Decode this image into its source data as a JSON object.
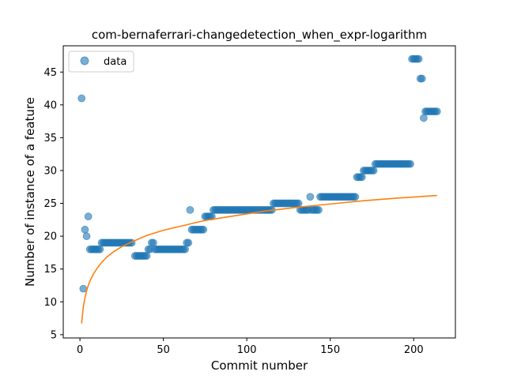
{
  "chart_data": {
    "type": "scatter",
    "title": "com-bernaferrari-changedetection_when_expr-logarithm",
    "xlabel": "Commit number",
    "ylabel": "Number of instance of a feature",
    "xlim": [
      -10,
      225
    ],
    "ylim": [
      4.5,
      49
    ],
    "xticks": [
      0,
      50,
      100,
      150,
      200
    ],
    "yticks": [
      5,
      10,
      15,
      20,
      25,
      30,
      35,
      40,
      45
    ],
    "legend": {
      "position": "upper-left",
      "entries": [
        "data"
      ]
    },
    "grid": false,
    "colors": {
      "data": "#1f77b4",
      "fit": "#ff7f0e"
    },
    "series": [
      {
        "name": "data",
        "kind": "scatter",
        "points": [
          [
            1,
            41
          ],
          [
            2,
            12
          ],
          [
            3,
            21
          ],
          [
            4,
            20
          ],
          [
            5,
            23
          ],
          [
            6,
            18
          ],
          [
            7,
            18
          ],
          [
            8,
            18
          ],
          [
            9,
            18
          ],
          [
            10,
            18
          ],
          [
            11,
            18
          ],
          [
            12,
            18
          ],
          [
            13,
            19
          ],
          [
            14,
            19
          ],
          [
            15,
            19
          ],
          [
            16,
            19
          ],
          [
            17,
            19
          ],
          [
            18,
            19
          ],
          [
            19,
            19
          ],
          [
            20,
            19
          ],
          [
            21,
            19
          ],
          [
            22,
            19
          ],
          [
            23,
            19
          ],
          [
            24,
            19
          ],
          [
            25,
            19
          ],
          [
            26,
            19
          ],
          [
            27,
            19
          ],
          [
            28,
            19
          ],
          [
            29,
            19
          ],
          [
            30,
            19
          ],
          [
            31,
            19
          ],
          [
            33,
            17
          ],
          [
            34,
            17
          ],
          [
            35,
            17
          ],
          [
            36,
            17
          ],
          [
            37,
            17
          ],
          [
            38,
            17
          ],
          [
            39,
            17
          ],
          [
            40,
            17
          ],
          [
            41,
            18
          ],
          [
            42,
            18
          ],
          [
            43,
            19
          ],
          [
            44,
            19
          ],
          [
            45,
            18
          ],
          [
            46,
            18
          ],
          [
            47,
            18
          ],
          [
            48,
            18
          ],
          [
            49,
            18
          ],
          [
            50,
            18
          ],
          [
            51,
            18
          ],
          [
            52,
            18
          ],
          [
            53,
            18
          ],
          [
            54,
            18
          ],
          [
            55,
            18
          ],
          [
            56,
            18
          ],
          [
            57,
            18
          ],
          [
            58,
            18
          ],
          [
            59,
            18
          ],
          [
            60,
            18
          ],
          [
            61,
            18
          ],
          [
            62,
            18
          ],
          [
            63,
            18
          ],
          [
            64,
            19
          ],
          [
            65,
            19
          ],
          [
            66,
            24
          ],
          [
            67,
            21
          ],
          [
            68,
            21
          ],
          [
            69,
            21
          ],
          [
            70,
            21
          ],
          [
            71,
            21
          ],
          [
            72,
            21
          ],
          [
            73,
            21
          ],
          [
            74,
            21
          ],
          [
            75,
            23
          ],
          [
            76,
            23
          ],
          [
            77,
            23
          ],
          [
            78,
            23
          ],
          [
            79,
            23
          ],
          [
            80,
            24
          ],
          [
            81,
            24
          ],
          [
            82,
            24
          ],
          [
            83,
            24
          ],
          [
            84,
            24
          ],
          [
            85,
            24
          ],
          [
            86,
            24
          ],
          [
            87,
            24
          ],
          [
            88,
            24
          ],
          [
            89,
            24
          ],
          [
            90,
            24
          ],
          [
            91,
            24
          ],
          [
            92,
            24
          ],
          [
            93,
            24
          ],
          [
            94,
            24
          ],
          [
            95,
            24
          ],
          [
            96,
            24
          ],
          [
            97,
            24
          ],
          [
            98,
            24
          ],
          [
            99,
            24
          ],
          [
            100,
            24
          ],
          [
            101,
            24
          ],
          [
            102,
            24
          ],
          [
            103,
            24
          ],
          [
            104,
            24
          ],
          [
            105,
            24
          ],
          [
            106,
            24
          ],
          [
            107,
            24
          ],
          [
            108,
            24
          ],
          [
            109,
            24
          ],
          [
            110,
            24
          ],
          [
            111,
            24
          ],
          [
            112,
            24
          ],
          [
            113,
            24
          ],
          [
            114,
            24
          ],
          [
            115,
            24
          ],
          [
            116,
            25
          ],
          [
            117,
            25
          ],
          [
            118,
            25
          ],
          [
            119,
            25
          ],
          [
            120,
            25
          ],
          [
            121,
            25
          ],
          [
            122,
            25
          ],
          [
            123,
            25
          ],
          [
            124,
            25
          ],
          [
            125,
            25
          ],
          [
            126,
            25
          ],
          [
            127,
            25
          ],
          [
            128,
            25
          ],
          [
            129,
            25
          ],
          [
            130,
            25
          ],
          [
            131,
            25
          ],
          [
            132,
            24
          ],
          [
            133,
            24
          ],
          [
            134,
            24
          ],
          [
            135,
            24
          ],
          [
            136,
            24
          ],
          [
            137,
            24
          ],
          [
            138,
            26
          ],
          [
            139,
            24
          ],
          [
            140,
            24
          ],
          [
            141,
            24
          ],
          [
            142,
            24
          ],
          [
            143,
            24
          ],
          [
            144,
            26
          ],
          [
            145,
            26
          ],
          [
            146,
            26
          ],
          [
            147,
            26
          ],
          [
            148,
            26
          ],
          [
            149,
            26
          ],
          [
            150,
            26
          ],
          [
            151,
            26
          ],
          [
            152,
            26
          ],
          [
            153,
            26
          ],
          [
            154,
            26
          ],
          [
            155,
            26
          ],
          [
            156,
            26
          ],
          [
            157,
            26
          ],
          [
            158,
            26
          ],
          [
            159,
            26
          ],
          [
            160,
            26
          ],
          [
            161,
            26
          ],
          [
            162,
            26
          ],
          [
            163,
            26
          ],
          [
            164,
            26
          ],
          [
            165,
            26
          ],
          [
            166,
            29
          ],
          [
            167,
            29
          ],
          [
            168,
            29
          ],
          [
            169,
            29
          ],
          [
            170,
            30
          ],
          [
            171,
            30
          ],
          [
            172,
            30
          ],
          [
            173,
            30
          ],
          [
            174,
            30
          ],
          [
            175,
            30
          ],
          [
            176,
            30
          ],
          [
            177,
            31
          ],
          [
            178,
            31
          ],
          [
            179,
            31
          ],
          [
            180,
            31
          ],
          [
            181,
            31
          ],
          [
            182,
            31
          ],
          [
            183,
            31
          ],
          [
            184,
            31
          ],
          [
            185,
            31
          ],
          [
            186,
            31
          ],
          [
            187,
            31
          ],
          [
            188,
            31
          ],
          [
            189,
            31
          ],
          [
            190,
            31
          ],
          [
            191,
            31
          ],
          [
            192,
            31
          ],
          [
            193,
            31
          ],
          [
            194,
            31
          ],
          [
            195,
            31
          ],
          [
            196,
            31
          ],
          [
            197,
            31
          ],
          [
            198,
            31
          ],
          [
            199,
            47
          ],
          [
            200,
            47
          ],
          [
            201,
            47
          ],
          [
            202,
            47
          ],
          [
            203,
            47
          ],
          [
            204,
            44
          ],
          [
            205,
            44
          ],
          [
            206,
            38
          ],
          [
            207,
            39
          ],
          [
            208,
            39
          ],
          [
            209,
            39
          ],
          [
            210,
            39
          ],
          [
            211,
            39
          ],
          [
            212,
            39
          ],
          [
            213,
            39
          ],
          [
            214,
            39
          ]
        ]
      },
      {
        "kind": "line",
        "x": [
          1,
          2,
          3,
          4,
          5,
          6,
          8,
          10,
          13,
          16,
          20,
          25,
          30,
          40,
          50,
          60,
          75,
          90,
          110,
          130,
          150,
          170,
          190,
          214
        ],
        "values": [
          6.7,
          9.2,
          10.6,
          11.7,
          12.5,
          13.2,
          14.2,
          15.0,
          16.0,
          16.8,
          17.6,
          18.4,
          19.0,
          20.1,
          20.9,
          21.5,
          22.4,
          23.0,
          23.8,
          24.4,
          24.9,
          25.4,
          25.8,
          26.2
        ]
      }
    ]
  }
}
